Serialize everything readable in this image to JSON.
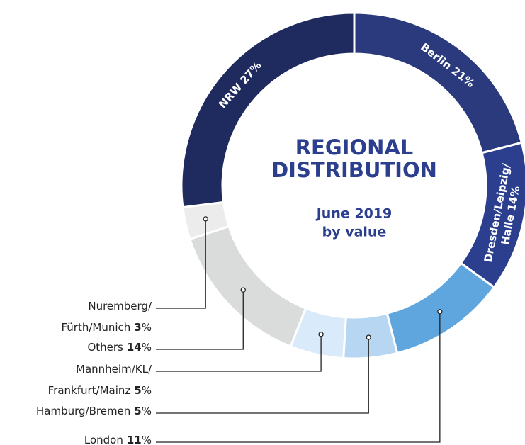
{
  "chart_data": {
    "type": "donut",
    "title": [
      "REGIONAL",
      "DISTRIBUTION"
    ],
    "subtitle": [
      "June 2019",
      "by value"
    ],
    "categories": [
      [
        "Berlin"
      ],
      [
        "Dresden/Leipzig/",
        "Halle"
      ],
      [
        "London"
      ],
      [
        "Hamburg/Bremen"
      ],
      [
        "Mannheim/KL/",
        "Frankfurt/Mainz"
      ],
      [
        "Others"
      ],
      [
        "Nuremberg/",
        "Fürth/Munich"
      ],
      [
        "NRW"
      ]
    ],
    "values": [
      21,
      14,
      11,
      5,
      5,
      14,
      3,
      27
    ],
    "unit": "%",
    "colors": [
      "#2b3a7c",
      "#2c3f8e",
      "#5ea6dd",
      "#b6d6f1",
      "#d9ebfa",
      "#dadcdc",
      "#ececec",
      "#1f2a5e"
    ],
    "label_position": [
      "inside",
      "inside",
      "outside",
      "outside",
      "outside",
      "outside",
      "outside",
      "inside"
    ]
  }
}
